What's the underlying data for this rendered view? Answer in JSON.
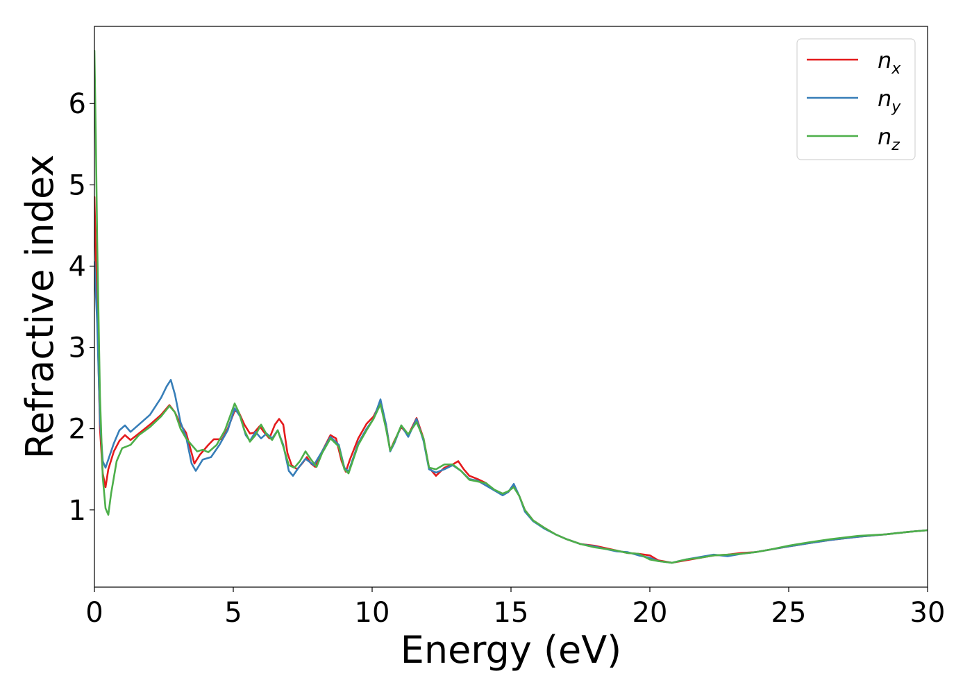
{
  "chart_data": {
    "type": "line",
    "title": "",
    "xlabel": "Energy (eV)",
    "ylabel": "Refractive index",
    "xlim": [
      0,
      30
    ],
    "ylim": [
      0.05,
      6.95
    ],
    "xticks": [
      0,
      5,
      10,
      15,
      20,
      25,
      30
    ],
    "yticks": [
      1,
      2,
      3,
      4,
      5,
      6
    ],
    "grid": false,
    "legend_position": "top-right",
    "series": [
      {
        "name": "n_x",
        "label_base": "n",
        "label_sub": "x",
        "color": "#e41a1c",
        "points": [
          [
            0,
            4.85
          ],
          [
            0.1,
            3.5
          ],
          [
            0.2,
            2.0
          ],
          [
            0.3,
            1.45
          ],
          [
            0.4,
            1.28
          ],
          [
            0.5,
            1.5
          ],
          [
            0.7,
            1.72
          ],
          [
            0.9,
            1.85
          ],
          [
            1.1,
            1.92
          ],
          [
            1.3,
            1.86
          ],
          [
            1.6,
            1.94
          ],
          [
            2.0,
            2.05
          ],
          [
            2.4,
            2.17
          ],
          [
            2.7,
            2.29
          ],
          [
            2.9,
            2.2
          ],
          [
            3.1,
            2.05
          ],
          [
            3.3,
            1.95
          ],
          [
            3.5,
            1.7
          ],
          [
            3.6,
            1.57
          ],
          [
            3.8,
            1.68
          ],
          [
            4.1,
            1.8
          ],
          [
            4.3,
            1.87
          ],
          [
            4.6,
            1.87
          ],
          [
            4.8,
            2.0
          ],
          [
            5.05,
            2.22
          ],
          [
            5.2,
            2.2
          ],
          [
            5.4,
            2.05
          ],
          [
            5.6,
            1.94
          ],
          [
            5.75,
            1.95
          ],
          [
            5.95,
            2.03
          ],
          [
            6.1,
            1.96
          ],
          [
            6.3,
            1.88
          ],
          [
            6.5,
            2.05
          ],
          [
            6.65,
            2.12
          ],
          [
            6.8,
            2.05
          ],
          [
            6.95,
            1.7
          ],
          [
            7.1,
            1.55
          ],
          [
            7.3,
            1.5
          ],
          [
            7.5,
            1.58
          ],
          [
            7.65,
            1.65
          ],
          [
            7.8,
            1.57
          ],
          [
            7.95,
            1.53
          ],
          [
            8.2,
            1.72
          ],
          [
            8.5,
            1.92
          ],
          [
            8.7,
            1.88
          ],
          [
            8.9,
            1.6
          ],
          [
            9.05,
            1.47
          ],
          [
            9.2,
            1.62
          ],
          [
            9.5,
            1.88
          ],
          [
            9.8,
            2.06
          ],
          [
            10.05,
            2.15
          ],
          [
            10.3,
            2.32
          ],
          [
            10.5,
            2.05
          ],
          [
            10.65,
            1.73
          ],
          [
            10.8,
            1.85
          ],
          [
            11.05,
            2.02
          ],
          [
            11.3,
            1.92
          ],
          [
            11.6,
            2.13
          ],
          [
            11.85,
            1.88
          ],
          [
            12.05,
            1.52
          ],
          [
            12.3,
            1.42
          ],
          [
            12.6,
            1.52
          ],
          [
            12.9,
            1.56
          ],
          [
            13.1,
            1.6
          ],
          [
            13.3,
            1.5
          ],
          [
            13.5,
            1.42
          ],
          [
            13.8,
            1.38
          ],
          [
            14.1,
            1.33
          ],
          [
            14.4,
            1.24
          ],
          [
            14.7,
            1.2
          ],
          [
            14.9,
            1.22
          ],
          [
            15.1,
            1.3
          ],
          [
            15.3,
            1.17
          ],
          [
            15.5,
            1.0
          ],
          [
            15.8,
            0.87
          ],
          [
            16.2,
            0.78
          ],
          [
            16.6,
            0.7
          ],
          [
            17.0,
            0.64
          ],
          [
            17.5,
            0.58
          ],
          [
            18.0,
            0.56
          ],
          [
            18.4,
            0.53
          ],
          [
            18.8,
            0.5
          ],
          [
            19.2,
            0.47
          ],
          [
            19.6,
            0.46
          ],
          [
            20.0,
            0.44
          ],
          [
            20.3,
            0.38
          ],
          [
            20.8,
            0.35
          ],
          [
            21.3,
            0.38
          ],
          [
            21.8,
            0.41
          ],
          [
            22.3,
            0.44
          ],
          [
            22.8,
            0.45
          ],
          [
            23.3,
            0.47
          ],
          [
            23.8,
            0.48
          ],
          [
            24.3,
            0.51
          ],
          [
            25.0,
            0.55
          ],
          [
            25.7,
            0.59
          ],
          [
            26.5,
            0.63
          ],
          [
            27.5,
            0.67
          ],
          [
            28.5,
            0.7
          ],
          [
            29.3,
            0.73
          ],
          [
            30.0,
            0.75
          ]
        ]
      },
      {
        "name": "n_y",
        "label_base": "n",
        "label_sub": "y",
        "color": "#377eb8",
        "points": [
          [
            0,
            4.05
          ],
          [
            0.1,
            3.3
          ],
          [
            0.2,
            2.1
          ],
          [
            0.3,
            1.6
          ],
          [
            0.4,
            1.52
          ],
          [
            0.5,
            1.62
          ],
          [
            0.7,
            1.82
          ],
          [
            0.9,
            1.98
          ],
          [
            1.1,
            2.04
          ],
          [
            1.3,
            1.96
          ],
          [
            1.6,
            2.05
          ],
          [
            2.0,
            2.17
          ],
          [
            2.4,
            2.38
          ],
          [
            2.6,
            2.52
          ],
          [
            2.75,
            2.6
          ],
          [
            2.9,
            2.42
          ],
          [
            3.1,
            2.08
          ],
          [
            3.3,
            1.9
          ],
          [
            3.5,
            1.57
          ],
          [
            3.65,
            1.48
          ],
          [
            3.9,
            1.62
          ],
          [
            4.2,
            1.65
          ],
          [
            4.5,
            1.8
          ],
          [
            4.8,
            1.98
          ],
          [
            5.05,
            2.25
          ],
          [
            5.25,
            2.15
          ],
          [
            5.45,
            1.92
          ],
          [
            5.6,
            1.85
          ],
          [
            5.8,
            1.96
          ],
          [
            6.0,
            1.88
          ],
          [
            6.2,
            1.94
          ],
          [
            6.4,
            1.88
          ],
          [
            6.6,
            1.98
          ],
          [
            6.8,
            1.8
          ],
          [
            7.0,
            1.48
          ],
          [
            7.15,
            1.42
          ],
          [
            7.35,
            1.52
          ],
          [
            7.6,
            1.63
          ],
          [
            7.9,
            1.55
          ],
          [
            8.2,
            1.72
          ],
          [
            8.5,
            1.9
          ],
          [
            8.8,
            1.8
          ],
          [
            9.0,
            1.52
          ],
          [
            9.15,
            1.47
          ],
          [
            9.5,
            1.82
          ],
          [
            9.8,
            2.0
          ],
          [
            10.05,
            2.12
          ],
          [
            10.3,
            2.36
          ],
          [
            10.5,
            2.05
          ],
          [
            10.65,
            1.72
          ],
          [
            10.8,
            1.82
          ],
          [
            11.05,
            2.04
          ],
          [
            11.3,
            1.9
          ],
          [
            11.6,
            2.12
          ],
          [
            11.85,
            1.85
          ],
          [
            12.05,
            1.5
          ],
          [
            12.3,
            1.46
          ],
          [
            12.6,
            1.5
          ],
          [
            12.9,
            1.55
          ],
          [
            13.2,
            1.48
          ],
          [
            13.5,
            1.38
          ],
          [
            13.8,
            1.36
          ],
          [
            14.1,
            1.3
          ],
          [
            14.4,
            1.24
          ],
          [
            14.7,
            1.18
          ],
          [
            14.9,
            1.22
          ],
          [
            15.1,
            1.32
          ],
          [
            15.3,
            1.17
          ],
          [
            15.5,
            0.98
          ],
          [
            15.8,
            0.86
          ],
          [
            16.2,
            0.77
          ],
          [
            16.6,
            0.7
          ],
          [
            17.0,
            0.64
          ],
          [
            17.5,
            0.58
          ],
          [
            18.0,
            0.55
          ],
          [
            18.4,
            0.52
          ],
          [
            18.8,
            0.49
          ],
          [
            19.2,
            0.48
          ],
          [
            19.6,
            0.44
          ],
          [
            20.0,
            0.41
          ],
          [
            20.3,
            0.37
          ],
          [
            20.8,
            0.35
          ],
          [
            21.3,
            0.39
          ],
          [
            21.8,
            0.42
          ],
          [
            22.3,
            0.45
          ],
          [
            22.8,
            0.43
          ],
          [
            23.3,
            0.46
          ],
          [
            23.8,
            0.48
          ],
          [
            24.3,
            0.51
          ],
          [
            25.0,
            0.55
          ],
          [
            25.7,
            0.59
          ],
          [
            26.5,
            0.63
          ],
          [
            27.5,
            0.67
          ],
          [
            28.5,
            0.7
          ],
          [
            29.3,
            0.73
          ],
          [
            30.0,
            0.75
          ]
        ]
      },
      {
        "name": "n_z",
        "label_base": "n",
        "label_sub": "z",
        "color": "#4daf4a",
        "points": [
          [
            0,
            6.65
          ],
          [
            0.05,
            5.6
          ],
          [
            0.1,
            4.3
          ],
          [
            0.2,
            2.4
          ],
          [
            0.3,
            1.4
          ],
          [
            0.4,
            1.02
          ],
          [
            0.5,
            0.94
          ],
          [
            0.6,
            1.2
          ],
          [
            0.8,
            1.6
          ],
          [
            1.0,
            1.76
          ],
          [
            1.3,
            1.8
          ],
          [
            1.6,
            1.92
          ],
          [
            2.0,
            2.02
          ],
          [
            2.4,
            2.15
          ],
          [
            2.7,
            2.28
          ],
          [
            2.9,
            2.2
          ],
          [
            3.1,
            2.0
          ],
          [
            3.3,
            1.88
          ],
          [
            3.5,
            1.8
          ],
          [
            3.7,
            1.72
          ],
          [
            3.9,
            1.74
          ],
          [
            4.1,
            1.71
          ],
          [
            4.4,
            1.8
          ],
          [
            4.7,
            1.98
          ],
          [
            5.05,
            2.31
          ],
          [
            5.2,
            2.2
          ],
          [
            5.4,
            1.98
          ],
          [
            5.6,
            1.84
          ],
          [
            5.8,
            1.92
          ],
          [
            6.0,
            2.05
          ],
          [
            6.2,
            1.93
          ],
          [
            6.4,
            1.86
          ],
          [
            6.6,
            1.98
          ],
          [
            6.8,
            1.78
          ],
          [
            7.0,
            1.55
          ],
          [
            7.2,
            1.52
          ],
          [
            7.4,
            1.6
          ],
          [
            7.6,
            1.72
          ],
          [
            7.8,
            1.62
          ],
          [
            8.0,
            1.53
          ],
          [
            8.2,
            1.7
          ],
          [
            8.5,
            1.88
          ],
          [
            8.8,
            1.78
          ],
          [
            9.0,
            1.5
          ],
          [
            9.15,
            1.45
          ],
          [
            9.5,
            1.8
          ],
          [
            9.8,
            1.98
          ],
          [
            10.05,
            2.12
          ],
          [
            10.3,
            2.3
          ],
          [
            10.5,
            2.0
          ],
          [
            10.65,
            1.73
          ],
          [
            10.8,
            1.84
          ],
          [
            11.05,
            2.04
          ],
          [
            11.3,
            1.93
          ],
          [
            11.6,
            2.08
          ],
          [
            11.85,
            1.88
          ],
          [
            12.05,
            1.52
          ],
          [
            12.3,
            1.5
          ],
          [
            12.6,
            1.56
          ],
          [
            12.9,
            1.56
          ],
          [
            13.2,
            1.48
          ],
          [
            13.5,
            1.37
          ],
          [
            13.8,
            1.35
          ],
          [
            14.1,
            1.33
          ],
          [
            14.4,
            1.25
          ],
          [
            14.7,
            1.2
          ],
          [
            14.9,
            1.23
          ],
          [
            15.1,
            1.28
          ],
          [
            15.3,
            1.17
          ],
          [
            15.5,
            1.0
          ],
          [
            15.8,
            0.87
          ],
          [
            16.2,
            0.78
          ],
          [
            16.6,
            0.7
          ],
          [
            17.0,
            0.64
          ],
          [
            17.5,
            0.58
          ],
          [
            18.0,
            0.54
          ],
          [
            18.4,
            0.52
          ],
          [
            18.8,
            0.5
          ],
          [
            19.2,
            0.47
          ],
          [
            19.6,
            0.46
          ],
          [
            20.0,
            0.39
          ],
          [
            20.3,
            0.37
          ],
          [
            20.8,
            0.35
          ],
          [
            21.3,
            0.39
          ],
          [
            21.8,
            0.41
          ],
          [
            22.3,
            0.44
          ],
          [
            22.8,
            0.45
          ],
          [
            23.3,
            0.46
          ],
          [
            23.8,
            0.48
          ],
          [
            24.3,
            0.51
          ],
          [
            25.0,
            0.56
          ],
          [
            25.7,
            0.6
          ],
          [
            26.5,
            0.64
          ],
          [
            27.5,
            0.68
          ],
          [
            28.5,
            0.7
          ],
          [
            29.3,
            0.73
          ],
          [
            30.0,
            0.75
          ]
        ]
      }
    ]
  }
}
